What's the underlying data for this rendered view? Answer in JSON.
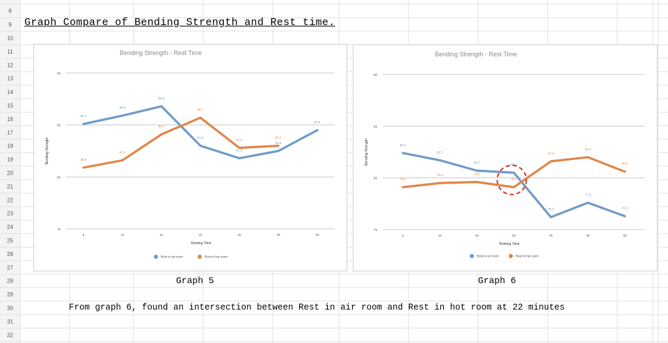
{
  "sheet": {
    "row_numbers": [
      "8",
      "9",
      "10",
      "11",
      "12",
      "13",
      "14",
      "15",
      "16",
      "17",
      "18",
      "19",
      "20",
      "21",
      "22",
      "23",
      "24",
      "25",
      "26",
      "27",
      "28",
      "29",
      "30",
      "31",
      "32"
    ]
  },
  "heading": "Graph Compare of Bending Strength and Rest time.",
  "captions": {
    "graph5": "Graph 5",
    "graph6": "Graph 6"
  },
  "note": "From graph 6, found an intersection between Rest in air room and Rest in hot room at 22 minutes",
  "colors": {
    "air": "#6e9bc9",
    "hot": "#e0854a",
    "grid": "#c9c9c9",
    "title": "#8a8a8a",
    "highlight": "#d9362b"
  },
  "chart_data": [
    {
      "type": "line",
      "title": "Bending Strength - Rest Time",
      "xlabel": "Resting Time",
      "ylabel": "Bending Strength",
      "categories": [
        "5",
        "10",
        "15",
        "20",
        "25",
        "30",
        "60"
      ],
      "ylim": [
        75,
        90
      ],
      "yticks": [
        "75",
        "80",
        "85",
        "90"
      ],
      "series": [
        {
          "name": "Rest in air room",
          "values": [
            85.1,
            85.9,
            86.8,
            83.0,
            81.8,
            82.5,
            84.5
          ],
          "labels": [
            "85.1",
            "85.9",
            "86.8",
            "83.0",
            "81.8",
            "82.5",
            "84.5"
          ]
        },
        {
          "name": "Rest in hot room",
          "values": [
            80.9,
            81.6,
            84.1,
            85.7,
            82.8,
            83.0,
            null
          ],
          "labels": [
            "80.9",
            "81.6",
            "84.1",
            "85.7",
            "82.8",
            "83.0",
            ""
          ]
        }
      ],
      "legend": "bottom"
    },
    {
      "type": "line",
      "title": "Bending Strength - Rest Time",
      "xlabel": "Resting Time",
      "ylabel": "Bending Strength",
      "categories": [
        "5",
        "10",
        "15",
        "20",
        "25",
        "30",
        "60"
      ],
      "ylim": [
        75,
        90
      ],
      "yticks": [
        "75",
        "80",
        "85",
        "90"
      ],
      "series": [
        {
          "name": "Rest in air room",
          "values": [
            82.4,
            81.7,
            80.7,
            80.5,
            76.2,
            77.6,
            76.3
          ],
          "labels": [
            "82.4",
            "81.7",
            "80.7",
            "80.5",
            "76.2",
            "77.6",
            "76.3"
          ]
        },
        {
          "name": "Rest in hot room",
          "values": [
            79.1,
            79.5,
            79.6,
            79.1,
            81.6,
            82.0,
            80.6
          ],
          "labels": [
            "79.1",
            "79.5",
            "79.6",
            "79.1",
            "81.6",
            "82.0",
            "80.6"
          ]
        }
      ],
      "legend": "bottom",
      "annotation": {
        "type": "circle",
        "near_x": "20",
        "near_y": 79.8,
        "style": "dashed"
      }
    }
  ]
}
